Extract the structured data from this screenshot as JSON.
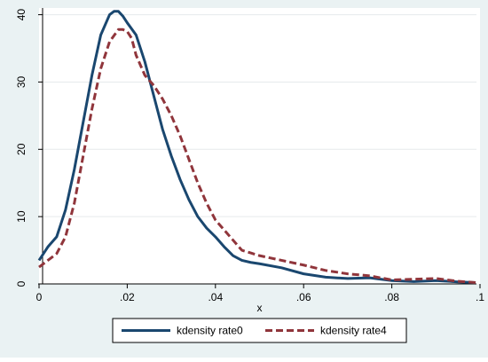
{
  "chart_data": {
    "type": "line",
    "title": "",
    "xlabel": "x",
    "ylabel": "",
    "xlim": [
      0,
      0.1
    ],
    "ylim": [
      0,
      41
    ],
    "x_ticks": [
      0,
      0.02,
      0.04,
      0.06,
      0.08,
      0.1
    ],
    "x_tick_labels": [
      "0",
      ".02",
      ".04",
      ".06",
      ".08",
      ".1"
    ],
    "y_ticks": [
      0,
      10,
      20,
      30,
      40
    ],
    "y_tick_labels": [
      "0",
      "10",
      "20",
      "30",
      "40"
    ],
    "grid": "horizontal",
    "legend_position": "bottom",
    "colors": {
      "background": "#eaf2f3",
      "plot_background": "#ffffff",
      "series_rate0": "#1a476f",
      "series_rate4": "#90353b"
    },
    "series": [
      {
        "name": "kdensity rate0",
        "style": "solid",
        "x": [
          0.0,
          0.002,
          0.004,
          0.006,
          0.008,
          0.01,
          0.012,
          0.014,
          0.016,
          0.017,
          0.018,
          0.019,
          0.02,
          0.022,
          0.024,
          0.026,
          0.028,
          0.03,
          0.032,
          0.034,
          0.036,
          0.038,
          0.04,
          0.042,
          0.044,
          0.046,
          0.048,
          0.05,
          0.055,
          0.06,
          0.065,
          0.07,
          0.075,
          0.08,
          0.085,
          0.09,
          0.095,
          0.099
        ],
        "values": [
          3.5,
          5.5,
          7.0,
          11.0,
          17.0,
          24.0,
          31.0,
          37.0,
          40.0,
          40.5,
          40.5,
          39.8,
          38.8,
          37.0,
          33.0,
          28.0,
          23.0,
          19.0,
          15.5,
          12.5,
          10.0,
          8.3,
          7.0,
          5.5,
          4.2,
          3.5,
          3.2,
          3.0,
          2.4,
          1.5,
          1.0,
          0.8,
          0.9,
          0.5,
          0.35,
          0.5,
          0.3,
          0.2
        ]
      },
      {
        "name": "kdensity rate4",
        "style": "dashed",
        "x": [
          0.0,
          0.002,
          0.004,
          0.006,
          0.008,
          0.01,
          0.012,
          0.014,
          0.016,
          0.018,
          0.019,
          0.02,
          0.021,
          0.022,
          0.024,
          0.026,
          0.028,
          0.03,
          0.032,
          0.034,
          0.036,
          0.038,
          0.04,
          0.042,
          0.044,
          0.046,
          0.048,
          0.05,
          0.055,
          0.06,
          0.065,
          0.07,
          0.075,
          0.08,
          0.085,
          0.09,
          0.095,
          0.099
        ],
        "values": [
          2.5,
          3.5,
          4.5,
          7.0,
          12.0,
          19.0,
          26.0,
          32.0,
          36.0,
          37.8,
          37.8,
          37.5,
          36.5,
          34.0,
          31.0,
          29.5,
          27.5,
          25.0,
          22.0,
          18.5,
          15.0,
          12.0,
          9.5,
          8.0,
          6.5,
          5.0,
          4.6,
          4.2,
          3.5,
          2.8,
          2.0,
          1.5,
          1.2,
          0.6,
          0.7,
          0.8,
          0.4,
          0.2
        ]
      }
    ]
  }
}
